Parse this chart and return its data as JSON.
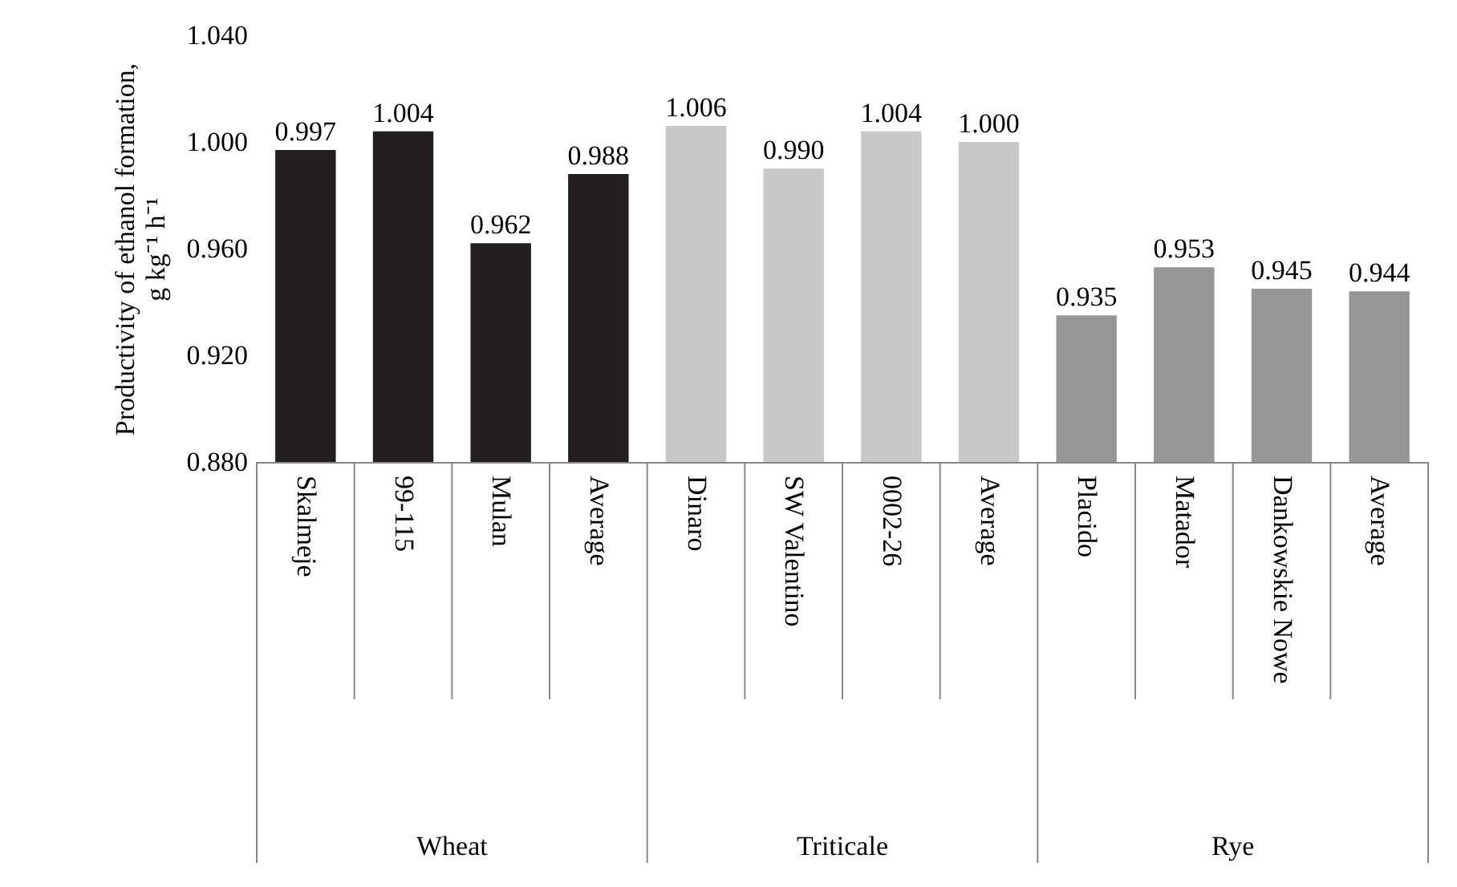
{
  "chart_data": {
    "type": "bar",
    "ylabel": "Productivity of ethanol formation,\ng kg⁻¹ h⁻¹",
    "categories": [
      "Skalmeje",
      "99-115",
      "Mulan",
      "Average",
      "Dinaro",
      "SW Valentino",
      "0002-26",
      "Average",
      "Placido",
      "Matador",
      "Dankowskie Nowe",
      "Average"
    ],
    "values": [
      0.997,
      1.004,
      0.962,
      0.988,
      1.006,
      0.99,
      1.004,
      1.0,
      0.935,
      0.953,
      0.945,
      0.944
    ],
    "value_labels": [
      "0.997",
      "1.004",
      "0.962",
      "0.988",
      "1.006",
      "0.990",
      "1.004",
      "1.000",
      "0.935",
      "0.953",
      "0.945",
      "0.944"
    ],
    "colors": [
      "#231f20",
      "#231f20",
      "#231f20",
      "#231f20",
      "#c8c8c8",
      "#c8c8c8",
      "#c8c8c8",
      "#c8c8c8",
      "#969696",
      "#969696",
      "#969696",
      "#969696"
    ],
    "annotations": [
      "Wheat",
      "Triticale",
      "Rye"
    ],
    "ylim": [
      0.88,
      1.04
    ],
    "yticks": [
      {
        "value": 0.88,
        "label": "0.880"
      },
      {
        "value": 0.92,
        "label": "0.920"
      },
      {
        "value": 0.96,
        "label": "0.960"
      },
      {
        "value": 1.0,
        "label": "1.000"
      },
      {
        "value": 1.04,
        "label": "1.040"
      }
    ],
    "grid": false
  }
}
